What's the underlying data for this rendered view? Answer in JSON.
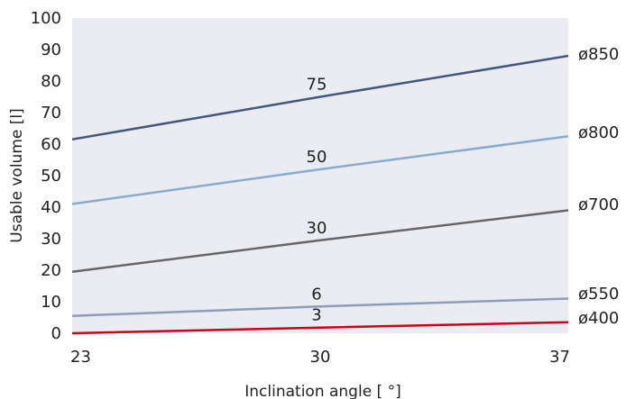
{
  "chart_data": {
    "type": "line",
    "title": "",
    "xlabel": "Inclination angle [ °]",
    "ylabel": "Usable volume [l]",
    "xlim": [
      23,
      37
    ],
    "ylim": [
      0,
      100
    ],
    "x_ticks": [
      "23",
      "30",
      "37"
    ],
    "y_ticks": [
      "0",
      "10",
      "20",
      "30",
      "40",
      "50",
      "60",
      "70",
      "80",
      "90",
      "100"
    ],
    "grid": false,
    "background": "#ebecf1",
    "series": [
      {
        "name": "ø850",
        "label": "75",
        "color": "#44577f",
        "x": [
          23,
          30,
          37
        ],
        "y": [
          61.5,
          75,
          88
        ]
      },
      {
        "name": "ø800",
        "label": "50",
        "color": "#88abd0",
        "x": [
          23,
          30,
          37
        ],
        "y": [
          41,
          52,
          62.5
        ]
      },
      {
        "name": "ø700",
        "label": "30",
        "color": "#666666",
        "x": [
          23,
          30,
          37
        ],
        "y": [
          19.5,
          29.5,
          39
        ]
      },
      {
        "name": "ø550",
        "label": "6",
        "color": "#8c9db8",
        "x": [
          23,
          30,
          37
        ],
        "y": [
          5.5,
          8.5,
          11
        ]
      },
      {
        "name": "ø400",
        "label": "3",
        "color": "#cc0018",
        "x": [
          23,
          30,
          37
        ],
        "y": [
          0,
          1.8,
          3.5
        ]
      }
    ]
  }
}
